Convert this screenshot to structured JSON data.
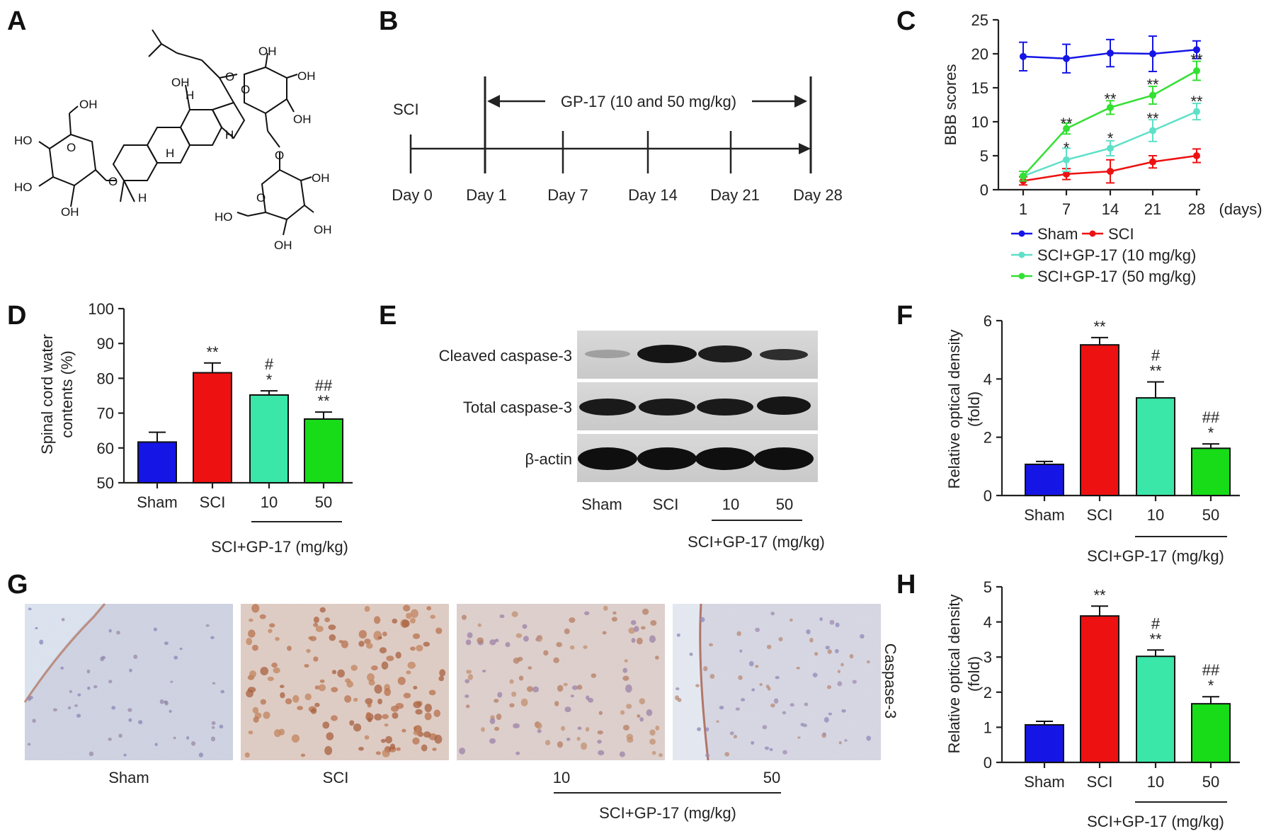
{
  "panels": {
    "A": "A",
    "B": "B",
    "C": "C",
    "D": "D",
    "E": "E",
    "F": "F",
    "G": "G",
    "H": "H"
  },
  "colors": {
    "sham": "#1515e6",
    "sci": "#ee1111",
    "gp10": "#3ae6a8",
    "gp50": "#18dc18",
    "line_gp10": "#5ee0c8",
    "line_gp50": "#33e033"
  },
  "structure": {
    "labels": [
      "OH",
      "HO",
      "HO",
      "OH",
      "O",
      "O",
      "OH",
      "H",
      "H",
      "H",
      "H",
      "O",
      "OH",
      "OH",
      "OH",
      "O",
      "O",
      "OH",
      "HO",
      "OH",
      "OH",
      "O"
    ]
  },
  "timeline": {
    "start_label": "SCI",
    "treatment_label": "GP-17 (10 and 50 mg/kg)",
    "days": [
      "Day 0",
      "Day 1",
      "Day 7",
      "Day 14",
      "Day 21",
      "Day 28"
    ]
  },
  "panel_c": {
    "x_unit": "(days)",
    "legend": [
      "Sham",
      "SCI",
      "SCI+GP-17 (10 mg/kg)",
      "SCI+GP-17 (50 mg/kg)"
    ]
  },
  "panel_e": {
    "bands": [
      "Cleaved caspase-3",
      "Total caspase-3",
      "β-actin"
    ],
    "lanes": [
      "Sham",
      "SCI",
      "10",
      "50"
    ],
    "group_label": "SCI+GP-17 (mg/kg)"
  },
  "panel_g": {
    "images": [
      "Sham",
      "SCI",
      "10",
      "50"
    ],
    "side_label": "Caspase-3",
    "group_label": "SCI+GP-17 (mg/kg)"
  },
  "chart_data": [
    {
      "panel": "C",
      "type": "line",
      "x": [
        1,
        7,
        14,
        21,
        28
      ],
      "xlabel": "(days)",
      "ylabel": "BBB scores",
      "ylim": [
        0,
        25
      ],
      "yticks": [
        0,
        5,
        10,
        15,
        20,
        25
      ],
      "legend_position": "bottom",
      "series": [
        {
          "name": "Sham",
          "values": [
            19.6,
            19.3,
            20.1,
            20.0,
            20.6
          ],
          "errors": [
            2.1,
            2.1,
            2.0,
            2.6,
            1.3
          ]
        },
        {
          "name": "SCI",
          "values": [
            1.3,
            2.3,
            2.7,
            4.1,
            5.0
          ],
          "errors": [
            0.6,
            0.8,
            1.7,
            0.9,
            1.0
          ]
        },
        {
          "name": "SCI+GP-17 (10 mg/kg)",
          "values": [
            2.0,
            4.4,
            6.1,
            8.7,
            11.5
          ],
          "errors": [
            0.7,
            1.7,
            1.1,
            1.6,
            1.2
          ]
        },
        {
          "name": "SCI+GP-17 (50 mg/kg)",
          "values": [
            2.0,
            9.0,
            12.1,
            13.9,
            17.5
          ],
          "errors": [
            0.7,
            0.8,
            1.0,
            1.3,
            1.4
          ]
        }
      ],
      "annotations": [
        {
          "x": 7,
          "y": 9.8,
          "text": "**"
        },
        {
          "x": 7,
          "y": 6.2,
          "text": "*"
        },
        {
          "x": 14,
          "y": 13.4,
          "text": "**"
        },
        {
          "x": 14,
          "y": 7.6,
          "text": "*"
        },
        {
          "x": 21,
          "y": 15.5,
          "text": "**"
        },
        {
          "x": 21,
          "y": 10.5,
          "text": "**"
        },
        {
          "x": 28,
          "y": 19.2,
          "text": "**"
        },
        {
          "x": 28,
          "y": 13.0,
          "text": "**"
        }
      ]
    },
    {
      "panel": "D",
      "type": "bar",
      "categories": [
        "Sham",
        "SCI",
        "10",
        "50"
      ],
      "values": [
        61.7,
        81.6,
        75.2,
        68.3
      ],
      "errors": [
        2.8,
        2.8,
        1.2,
        2.0
      ],
      "ylabel": "Spinal cord water contents (%)",
      "ylim": [
        50,
        100
      ],
      "yticks": [
        50,
        60,
        70,
        80,
        90,
        100
      ],
      "group_label": "SCI+GP-17 (mg/kg)",
      "significance": [
        [],
        [
          "**"
        ],
        [
          "#",
          "*"
        ],
        [
          "##",
          "**"
        ]
      ]
    },
    {
      "panel": "F",
      "type": "bar",
      "categories": [
        "Sham",
        "SCI",
        "10",
        "50"
      ],
      "values": [
        1.07,
        5.17,
        3.35,
        1.62
      ],
      "errors": [
        0.1,
        0.25,
        0.55,
        0.15
      ],
      "ylabel": "Relative optical density (fold)",
      "ylim": [
        0,
        6
      ],
      "yticks": [
        0,
        2,
        4,
        6
      ],
      "group_label": "SCI+GP-17 (mg/kg)",
      "significance": [
        [],
        [
          "**"
        ],
        [
          "#",
          "**"
        ],
        [
          "##",
          "*"
        ]
      ]
    },
    {
      "panel": "H",
      "type": "bar",
      "categories": [
        "Sham",
        "SCI",
        "10",
        "50"
      ],
      "values": [
        1.07,
        4.17,
        3.02,
        1.67
      ],
      "errors": [
        0.1,
        0.28,
        0.18,
        0.2
      ],
      "ylabel": "Relative optical density (fold)",
      "ylim": [
        0,
        5
      ],
      "yticks": [
        0,
        1,
        2,
        3,
        4,
        5
      ],
      "group_label": "SCI+GP-17 (mg/kg)",
      "significance": [
        [],
        [
          "**"
        ],
        [
          "#",
          "**"
        ],
        [
          "##",
          "*"
        ]
      ]
    }
  ]
}
